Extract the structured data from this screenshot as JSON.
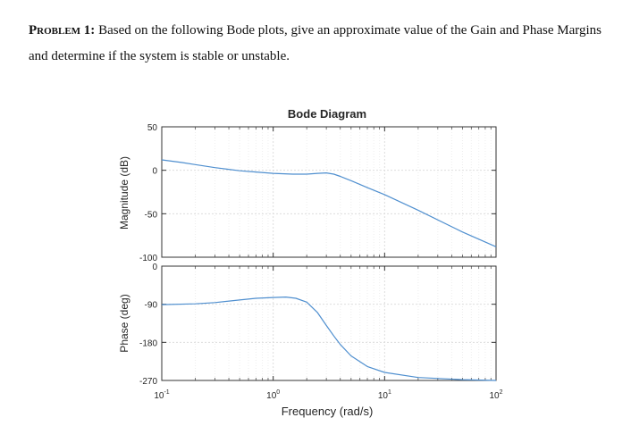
{
  "problem": {
    "label": "Problem 1:",
    "text": "Based on the following Bode plots, give an approximate value of the Gain and Phase Margins and determine if the system is stable or unstable."
  },
  "chart_data": {
    "type": "line",
    "title": "Bode Diagram",
    "xlabel": "Frequency (rad/s)",
    "xscale": "log",
    "xlim": [
      0.1,
      100
    ],
    "xticks": [
      0.1,
      1,
      10,
      100
    ],
    "xtick_labels": [
      {
        "base": "10",
        "exp": "-1"
      },
      {
        "base": "10",
        "exp": "0"
      },
      {
        "base": "10",
        "exp": "1"
      },
      {
        "base": "10",
        "exp": "2"
      }
    ],
    "grid": true,
    "line_color": "#4f8fcf",
    "magnitude": {
      "ylabel": "Magnitude (dB)",
      "ylim": [
        -100,
        50
      ],
      "yticks": [
        50,
        0,
        -50,
        -100
      ],
      "ytick_labels": [
        "50",
        "0",
        "-50",
        "-100"
      ],
      "x": [
        0.1,
        0.15,
        0.2,
        0.3,
        0.5,
        0.7,
        1,
        1.5,
        2,
        2.5,
        3,
        3.5,
        4,
        5,
        7,
        10,
        20,
        50,
        100
      ],
      "y": [
        12,
        9,
        6.5,
        3,
        -0.5,
        -2,
        -3.5,
        -4.5,
        -4.5,
        -3.5,
        -3,
        -4.5,
        -7,
        -12,
        -20,
        -28,
        -46,
        -71,
        -88
      ]
    },
    "phase": {
      "ylabel": "Phase (deg)",
      "ylim": [
        -270,
        0
      ],
      "yticks": [
        0,
        -90,
        -180,
        -270
      ],
      "ytick_labels": [
        "0",
        "-90",
        "-180",
        "-270"
      ],
      "x": [
        0.1,
        0.2,
        0.3,
        0.5,
        0.7,
        1,
        1.3,
        1.6,
        2,
        2.5,
        3,
        3.5,
        4,
        5,
        7,
        10,
        20,
        50,
        100
      ],
      "y": [
        -91,
        -89,
        -86,
        -80,
        -76,
        -74,
        -73,
        -76,
        -85,
        -110,
        -140,
        -165,
        -185,
        -212,
        -237,
        -251,
        -263,
        -268,
        -270
      ]
    }
  }
}
